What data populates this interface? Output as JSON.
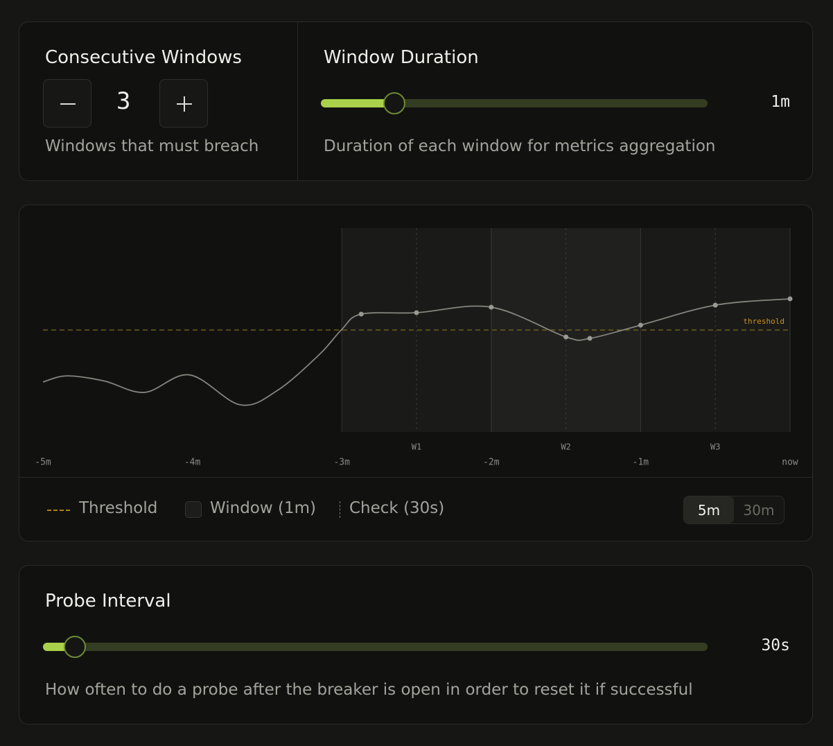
{
  "consecutive_windows": {
    "title": "Consecutive Windows",
    "value": 3,
    "description": "Windows that must breach"
  },
  "window_duration": {
    "title": "Window Duration",
    "value": "1m",
    "description": "Duration of each window for metrics aggregation"
  },
  "chart_data": {
    "type": "line",
    "x": [
      -5,
      -4.84,
      -4.59,
      -4.32,
      -4.02,
      -3.68,
      -3.43,
      -3.15,
      -3.0,
      -2.87,
      -2.5,
      -2.0,
      -1.5,
      -1.34,
      -1.0,
      -0.5,
      0
    ],
    "series": [
      {
        "color": "#85857f",
        "values": [
          24.5,
          27.5,
          25,
          19.4,
          28,
          13.3,
          20.4,
          38,
          50.3,
          57.8,
          58.5,
          61.2,
          46.6,
          45.9,
          52.4,
          62.2,
          65.3
        ]
      }
    ],
    "xlim": [
      -5,
      0
    ],
    "ylim": [
      0,
      100
    ],
    "xticks": [
      {
        "value": -5,
        "label": "-5m"
      },
      {
        "value": -4,
        "label": "-4m"
      },
      {
        "value": -3,
        "label": "-3m"
      },
      {
        "value": -2,
        "label": "-2m"
      },
      {
        "value": -1,
        "label": "-1m"
      },
      {
        "value": 0,
        "label": "now"
      }
    ],
    "threshold": {
      "value": 50,
      "label": "threshold",
      "color": "#c8901e"
    },
    "windows": [
      {
        "label": "W1",
        "start": -3,
        "end": -2,
        "check": -2.5
      },
      {
        "label": "W2",
        "start": -2,
        "end": -1,
        "check": -1.5
      },
      {
        "label": "W3",
        "start": -1,
        "end": 0,
        "check": -0.5
      }
    ],
    "legend": [
      "Threshold",
      "Window (1m)",
      "Check (30s)"
    ]
  },
  "range_toggle": {
    "options": [
      "5m",
      "30m"
    ],
    "selected": 0
  },
  "probe_interval": {
    "title": "Probe Interval",
    "value": "30s",
    "description": "How often to do a probe after the breaker is open in order to reset it if successful"
  }
}
